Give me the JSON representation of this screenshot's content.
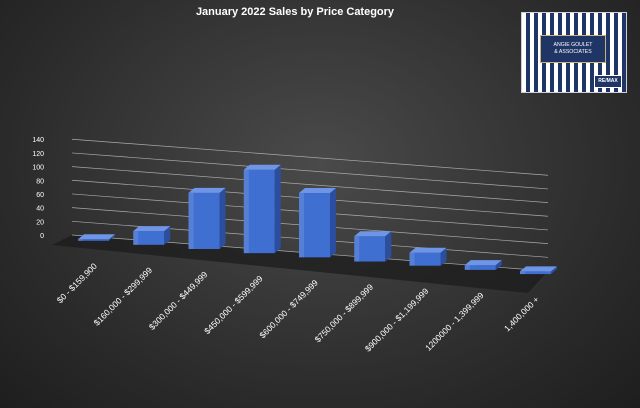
{
  "chart_data": {
    "type": "bar",
    "title": "January 2022 Sales by Price Category",
    "categories": [
      "$0 - $159,900",
      "$160,000 - $299,999",
      "$300,000 - $449,999",
      "$450,000 - $599,999",
      "$600,000 - $749,999",
      "$750,000 - $899,999",
      "$900,000 - $1,199,999",
      "1200000 - 1,399,999",
      "1,400,000 +"
    ],
    "values": [
      2,
      20,
      82,
      122,
      94,
      37,
      19,
      7,
      4
    ],
    "yticks": [
      0,
      20,
      40,
      60,
      80,
      100,
      120,
      140
    ],
    "ylim": [
      0,
      140
    ],
    "grid": true,
    "legend": "none",
    "style": "3d-columns",
    "colors": {
      "bar_front": "#3f6fd1",
      "bar_side": "#2b4f9e",
      "bar_top": "#6f95e6",
      "grid": "#bfbfbf",
      "text": "#ffffff"
    }
  },
  "logo": {
    "line1": "ANGIE GOULET",
    "line2": "& ASSOCIATES",
    "badge": "RE/MAX"
  }
}
